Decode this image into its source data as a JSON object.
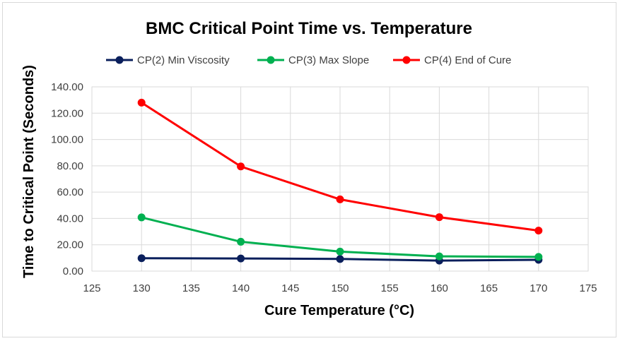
{
  "chart_data": {
    "type": "scatter",
    "title": "BMC Critical Point Time vs. Temperature",
    "xlabel": "Cure Temperature (°C)",
    "ylabel": "Time to Critical Point (Seconds)",
    "xlim": [
      125,
      175
    ],
    "ylim": [
      0,
      140
    ],
    "x_ticks": [
      125,
      130,
      135,
      140,
      145,
      150,
      155,
      160,
      165,
      170,
      175
    ],
    "y_ticks": [
      0,
      20,
      40,
      60,
      80,
      100,
      120,
      140
    ],
    "x_tick_labels": [
      "125",
      "130",
      "135",
      "140",
      "145",
      "150",
      "155",
      "160",
      "165",
      "170",
      "175"
    ],
    "y_tick_labels": [
      "0.00",
      "20.00",
      "40.00",
      "60.00",
      "80.00",
      "100.00",
      "120.00",
      "140.00"
    ],
    "grid": true,
    "legend_position": "top",
    "series": [
      {
        "name": "CP(2) Min Viscosity",
        "color": "#0a1f5c",
        "x": [
          130,
          140,
          150,
          160,
          170
        ],
        "y": [
          9.8,
          9.6,
          9.2,
          8.0,
          8.6
        ]
      },
      {
        "name": "CP(3) Max Slope",
        "color": "#00b050",
        "x": [
          130,
          140,
          150,
          160,
          170
        ],
        "y": [
          40.8,
          22.3,
          14.8,
          11.2,
          10.8
        ]
      },
      {
        "name": "CP(4) End of Cure",
        "color": "#ff0000",
        "x": [
          130,
          140,
          150,
          160,
          170
        ],
        "y": [
          128.0,
          79.5,
          54.5,
          41.0,
          30.8
        ]
      }
    ]
  }
}
